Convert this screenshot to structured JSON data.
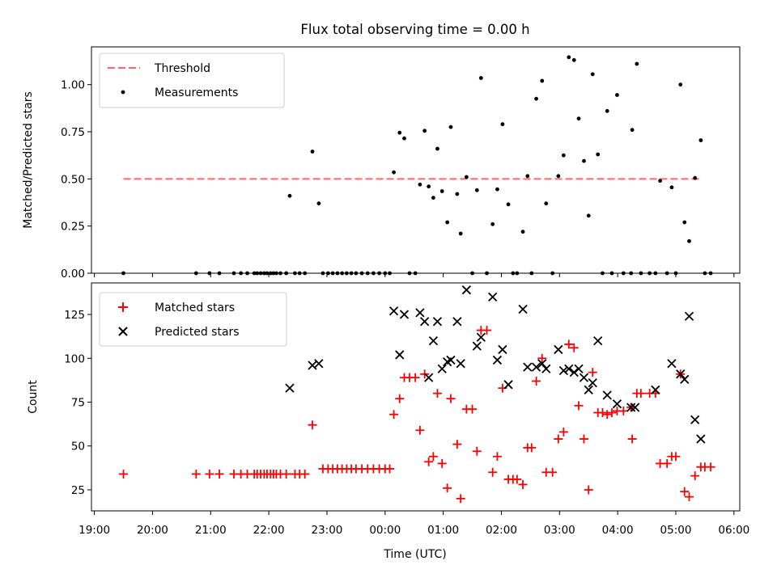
{
  "chart_data": [
    {
      "type": "scatter",
      "title": "Flux total observing time = 0.00 h",
      "xlabel": "",
      "ylabel": "Matched/Predicted stars",
      "xlim": [
        18.95,
        30.1
      ],
      "ylim": [
        0,
        1.2
      ],
      "yticks": [
        "0.00",
        "0.25",
        "0.50",
        "0.75",
        "1.00"
      ],
      "legend_position": "upper-left",
      "grid": false,
      "threshold": {
        "name": "Threshold",
        "value": 0.5,
        "x_range": [
          19.5,
          29.4
        ],
        "color": "#ff6666"
      },
      "series": [
        {
          "name": "Measurements",
          "marker": "dot",
          "color": "#000000",
          "points": [
            [
              19.5,
              0
            ],
            [
              20.75,
              0
            ],
            [
              20.98,
              0
            ],
            [
              21.15,
              0
            ],
            [
              21.4,
              0
            ],
            [
              21.52,
              0
            ],
            [
              21.63,
              0
            ],
            [
              21.75,
              0
            ],
            [
              21.8,
              0
            ],
            [
              21.86,
              0
            ],
            [
              21.92,
              0
            ],
            [
              21.97,
              0
            ],
            [
              22.03,
              0
            ],
            [
              22.08,
              0
            ],
            [
              22.13,
              0
            ],
            [
              22.2,
              0
            ],
            [
              22.3,
              0
            ],
            [
              22.36,
              0.41
            ],
            [
              22.45,
              0
            ],
            [
              22.53,
              0
            ],
            [
              22.62,
              0
            ],
            [
              22.75,
              0.645
            ],
            [
              22.86,
              0.37
            ],
            [
              22.93,
              0
            ],
            [
              23.02,
              0
            ],
            [
              23.1,
              0
            ],
            [
              23.18,
              0
            ],
            [
              23.26,
              0
            ],
            [
              23.34,
              0
            ],
            [
              23.42,
              0
            ],
            [
              23.5,
              0
            ],
            [
              23.6,
              0
            ],
            [
              23.7,
              0
            ],
            [
              23.8,
              0
            ],
            [
              23.9,
              0
            ],
            [
              24.0,
              0
            ],
            [
              24.08,
              0
            ],
            [
              24.15,
              0.535
            ],
            [
              24.25,
              0.745
            ],
            [
              24.33,
              0.715
            ],
            [
              24.42,
              0
            ],
            [
              24.52,
              0
            ],
            [
              24.6,
              0.47
            ],
            [
              24.68,
              0.755
            ],
            [
              24.75,
              0.46
            ],
            [
              24.83,
              0.4
            ],
            [
              24.9,
              0.66
            ],
            [
              24.98,
              0.435
            ],
            [
              25.07,
              0.27
            ],
            [
              25.13,
              0.775
            ],
            [
              25.24,
              0.42
            ],
            [
              25.3,
              0.21
            ],
            [
              25.4,
              0.51
            ],
            [
              25.5,
              0
            ],
            [
              25.58,
              0.44
            ],
            [
              25.65,
              1.035
            ],
            [
              25.75,
              0
            ],
            [
              25.85,
              0.26
            ],
            [
              25.93,
              0.445
            ],
            [
              26.02,
              0.79
            ],
            [
              26.12,
              0.365
            ],
            [
              26.2,
              0
            ],
            [
              26.27,
              0
            ],
            [
              26.37,
              0.22
            ],
            [
              26.45,
              0.515
            ],
            [
              26.52,
              0
            ],
            [
              26.6,
              0.925
            ],
            [
              26.7,
              1.02
            ],
            [
              26.77,
              0.37
            ],
            [
              26.88,
              0
            ],
            [
              26.98,
              0.515
            ],
            [
              27.07,
              0.625
            ],
            [
              27.16,
              1.145
            ],
            [
              27.25,
              1.13
            ],
            [
              27.33,
              0.82
            ],
            [
              27.42,
              0.595
            ],
            [
              27.5,
              0.305
            ],
            [
              27.57,
              1.055
            ],
            [
              27.66,
              0.63
            ],
            [
              27.74,
              0
            ],
            [
              27.82,
              0.86
            ],
            [
              27.9,
              0
            ],
            [
              27.99,
              0.945
            ],
            [
              28.1,
              0
            ],
            [
              28.23,
              0
            ],
            [
              28.25,
              0.76
            ],
            [
              28.33,
              1.11
            ],
            [
              28.4,
              0
            ],
            [
              28.55,
              0
            ],
            [
              28.65,
              0
            ],
            [
              28.73,
              0.49
            ],
            [
              28.85,
              0
            ],
            [
              28.93,
              0.455
            ],
            [
              29.0,
              0
            ],
            [
              29.08,
              1.0
            ],
            [
              29.15,
              0.27
            ],
            [
              29.23,
              0.17
            ],
            [
              29.33,
              0.505
            ],
            [
              29.43,
              0.705
            ],
            [
              29.5,
              0
            ],
            [
              29.6,
              0
            ]
          ]
        }
      ]
    },
    {
      "type": "scatter",
      "title": "",
      "xlabel": "Time (UTC)",
      "ylabel": "Count",
      "xlim": [
        18.95,
        30.1
      ],
      "ylim": [
        13,
        143
      ],
      "yticks": [
        "25",
        "50",
        "75",
        "100",
        "125"
      ],
      "xticks": [
        "19:00",
        "20:00",
        "21:00",
        "22:00",
        "23:00",
        "00:00",
        "01:00",
        "02:00",
        "03:00",
        "04:00",
        "05:00",
        "06:00"
      ],
      "legend_position": "upper-left",
      "grid": false,
      "series": [
        {
          "name": "Matched stars",
          "marker": "plus",
          "color": "#ff0000",
          "points": [
            [
              19.5,
              34
            ],
            [
              20.75,
              34
            ],
            [
              20.98,
              34
            ],
            [
              21.15,
              34
            ],
            [
              21.4,
              34
            ],
            [
              21.52,
              34
            ],
            [
              21.63,
              34
            ],
            [
              21.75,
              34
            ],
            [
              21.8,
              34
            ],
            [
              21.86,
              34
            ],
            [
              21.92,
              34
            ],
            [
              21.97,
              34
            ],
            [
              22.03,
              34
            ],
            [
              22.08,
              34
            ],
            [
              22.13,
              34
            ],
            [
              22.2,
              34
            ],
            [
              22.3,
              34
            ],
            [
              22.45,
              34
            ],
            [
              22.53,
              34
            ],
            [
              22.62,
              34
            ],
            [
              22.75,
              62
            ],
            [
              22.93,
              37
            ],
            [
              23.02,
              37
            ],
            [
              23.1,
              37
            ],
            [
              23.18,
              37
            ],
            [
              23.26,
              37
            ],
            [
              23.34,
              37
            ],
            [
              23.42,
              37
            ],
            [
              23.5,
              37
            ],
            [
              23.6,
              37
            ],
            [
              23.7,
              37
            ],
            [
              23.8,
              37
            ],
            [
              23.9,
              37
            ],
            [
              24.0,
              37
            ],
            [
              24.08,
              37
            ],
            [
              24.15,
              68
            ],
            [
              24.25,
              77
            ],
            [
              24.33,
              89
            ],
            [
              24.42,
              89
            ],
            [
              24.52,
              89
            ],
            [
              24.6,
              59
            ],
            [
              24.68,
              91
            ],
            [
              24.75,
              41
            ],
            [
              24.83,
              44
            ],
            [
              24.9,
              80
            ],
            [
              24.98,
              40
            ],
            [
              25.07,
              26
            ],
            [
              25.13,
              77
            ],
            [
              25.24,
              51
            ],
            [
              25.3,
              20
            ],
            [
              25.4,
              71
            ],
            [
              25.5,
              71
            ],
            [
              25.58,
              47
            ],
            [
              25.65,
              116
            ],
            [
              25.75,
              116
            ],
            [
              25.85,
              35
            ],
            [
              25.93,
              44
            ],
            [
              26.02,
              83
            ],
            [
              26.12,
              31
            ],
            [
              26.2,
              31
            ],
            [
              26.27,
              31
            ],
            [
              26.37,
              28
            ],
            [
              26.45,
              49
            ],
            [
              26.52,
              49
            ],
            [
              26.6,
              87
            ],
            [
              26.7,
              100
            ],
            [
              26.77,
              35
            ],
            [
              26.88,
              35
            ],
            [
              26.98,
              54
            ],
            [
              27.07,
              58
            ],
            [
              27.16,
              108
            ],
            [
              27.25,
              106
            ],
            [
              27.33,
              73
            ],
            [
              27.42,
              54
            ],
            [
              27.5,
              25
            ],
            [
              27.57,
              92
            ],
            [
              27.66,
              69
            ],
            [
              27.74,
              69
            ],
            [
              27.82,
              68
            ],
            [
              27.9,
              69
            ],
            [
              27.99,
              70
            ],
            [
              28.1,
              70
            ],
            [
              28.23,
              72
            ],
            [
              28.25,
              54
            ],
            [
              28.33,
              80
            ],
            [
              28.4,
              80
            ],
            [
              28.55,
              80
            ],
            [
              28.65,
              80
            ],
            [
              28.73,
              40
            ],
            [
              28.85,
              40
            ],
            [
              28.93,
              44
            ],
            [
              29.0,
              44
            ],
            [
              29.08,
              91
            ],
            [
              29.15,
              24
            ],
            [
              29.23,
              21
            ],
            [
              29.33,
              33
            ],
            [
              29.43,
              38
            ],
            [
              29.5,
              38
            ],
            [
              29.6,
              38
            ]
          ]
        },
        {
          "name": "Predicted stars",
          "marker": "x",
          "color": "#000000",
          "points": [
            [
              22.36,
              83
            ],
            [
              22.75,
              96
            ],
            [
              22.86,
              97
            ],
            [
              24.15,
              127
            ],
            [
              24.25,
              102
            ],
            [
              24.33,
              125
            ],
            [
              24.6,
              126
            ],
            [
              24.68,
              121
            ],
            [
              24.75,
              89
            ],
            [
              24.83,
              110
            ],
            [
              24.9,
              121
            ],
            [
              24.98,
              94
            ],
            [
              25.07,
              98
            ],
            [
              25.13,
              99
            ],
            [
              25.24,
              121
            ],
            [
              25.3,
              97
            ],
            [
              25.4,
              139
            ],
            [
              25.58,
              107
            ],
            [
              25.65,
              112
            ],
            [
              25.85,
              135
            ],
            [
              25.93,
              99
            ],
            [
              26.02,
              105
            ],
            [
              26.12,
              85
            ],
            [
              26.37,
              128
            ],
            [
              26.45,
              95
            ],
            [
              26.6,
              95
            ],
            [
              26.7,
              97
            ],
            [
              26.77,
              94
            ],
            [
              26.98,
              105
            ],
            [
              27.07,
              93
            ],
            [
              27.16,
              94
            ],
            [
              27.25,
              92
            ],
            [
              27.33,
              94
            ],
            [
              27.42,
              89
            ],
            [
              27.5,
              82
            ],
            [
              27.57,
              86
            ],
            [
              27.66,
              110
            ],
            [
              27.82,
              79
            ],
            [
              27.99,
              74
            ],
            [
              28.23,
              72
            ],
            [
              28.3,
              72
            ],
            [
              28.65,
              82
            ],
            [
              28.93,
              97
            ],
            [
              29.08,
              91
            ],
            [
              29.15,
              88
            ],
            [
              29.23,
              124
            ],
            [
              29.33,
              65
            ],
            [
              29.43,
              54
            ]
          ]
        }
      ]
    }
  ]
}
